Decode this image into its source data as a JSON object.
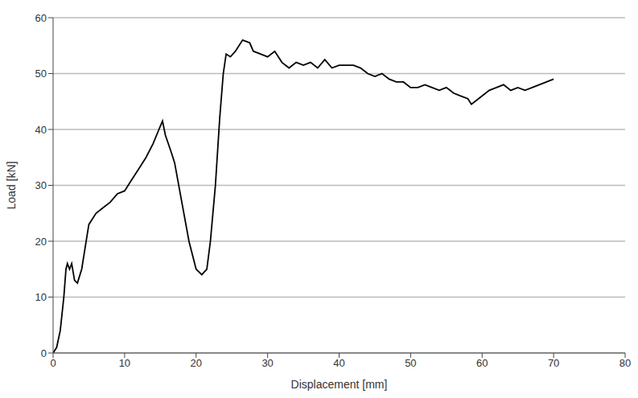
{
  "chart_data": {
    "type": "line",
    "x_label": "Displacement [mm]",
    "y_label": "Load [kN]",
    "x": [
      0,
      0.5,
      1,
      1.5,
      1.8,
      2,
      2.3,
      2.6,
      3,
      3.4,
      4,
      4.5,
      5,
      5.5,
      6,
      7,
      8,
      9,
      10,
      11,
      12,
      13,
      14,
      14.8,
      15.3,
      15.7,
      16.5,
      17,
      18,
      19,
      20,
      20.8,
      21.5,
      22,
      22.7,
      23.3,
      23.8,
      24.2,
      24.8,
      25.5,
      26.5,
      27.5,
      28,
      29,
      30,
      31,
      32,
      33,
      34,
      35,
      36,
      37,
      38,
      39,
      40,
      41,
      42,
      43,
      44,
      45,
      46,
      47,
      48,
      49,
      50,
      51,
      52,
      53,
      54,
      55,
      56,
      57,
      58,
      58.5,
      59,
      60,
      61,
      62,
      63,
      64,
      65,
      66,
      67,
      68,
      69,
      70
    ],
    "values": [
      0,
      1,
      4,
      10,
      15,
      16,
      15,
      16,
      13,
      12.5,
      15,
      19,
      23,
      24,
      25,
      26,
      27,
      28.5,
      29,
      31,
      33,
      35,
      37.5,
      40,
      41.5,
      39,
      36,
      34,
      27,
      20,
      15,
      14,
      15,
      20,
      30,
      42,
      50,
      53.5,
      53,
      54,
      56,
      55.5,
      54,
      53.5,
      53,
      54,
      52,
      51,
      52,
      51.5,
      52,
      51,
      52.5,
      51,
      51.5,
      51.5,
      51.5,
      51,
      50,
      49.5,
      50,
      49,
      48.5,
      48.5,
      47.5,
      47.5,
      48,
      47.5,
      47,
      47.5,
      46.5,
      46,
      45.5,
      44.5,
      45,
      46,
      47,
      47.5,
      48,
      47,
      47.5,
      47,
      47.5,
      48,
      48.5,
      49
    ],
    "color": "#000000",
    "xlim": [
      0,
      80
    ],
    "xticks": [
      0,
      10,
      20,
      30,
      40,
      50,
      60,
      70,
      80
    ],
    "ylim": [
      0,
      60
    ],
    "yticks": [
      0,
      10,
      20,
      30,
      40,
      50,
      60
    ],
    "grid": true
  }
}
